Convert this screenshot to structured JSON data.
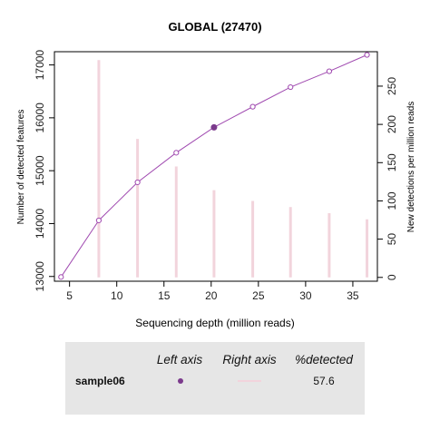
{
  "chart_data": {
    "type": "line",
    "title": "GLOBAL (27470)",
    "xlabel": "Sequencing depth (million reads)",
    "ylabel": "Number of detected features",
    "y2label": "New detections per million reads",
    "xlim": [
      3.4,
      37.6
    ],
    "ylim": [
      12910,
      17250
    ],
    "y2lim": [
      -5,
      295
    ],
    "x_ticks": [
      5,
      10,
      15,
      20,
      25,
      30,
      35
    ],
    "y_ticks": [
      13000,
      14000,
      15000,
      16000,
      17000
    ],
    "y2_ticks": [
      0,
      50,
      100,
      150,
      200,
      250
    ],
    "grid": false,
    "colors": {
      "line": "#a04ab0",
      "highlight": "#7b3a8c",
      "bars": "#f2d4dc"
    },
    "series": [
      {
        "name": "sample06",
        "axis": "left",
        "x": [
          4.1,
          8.1,
          12.2,
          16.3,
          20.3,
          24.4,
          28.4,
          32.5,
          36.5
        ],
        "values": [
          12990,
          14060,
          14780,
          15340,
          15820,
          16210,
          16580,
          16880,
          17190
        ],
        "highlight_index": 4
      },
      {
        "name": "sample06",
        "axis": "right",
        "type": "bar",
        "x": [
          8.1,
          12.2,
          16.3,
          20.3,
          24.4,
          28.4,
          32.5,
          36.5
        ],
        "values": [
          284,
          181,
          145,
          114,
          100,
          92,
          84,
          76
        ]
      }
    ]
  },
  "legend": {
    "headers": {
      "left": "Left axis",
      "right": "Right axis",
      "pct": "%detected"
    },
    "rows": [
      {
        "sample": "sample06",
        "pct": "57.6"
      }
    ]
  }
}
